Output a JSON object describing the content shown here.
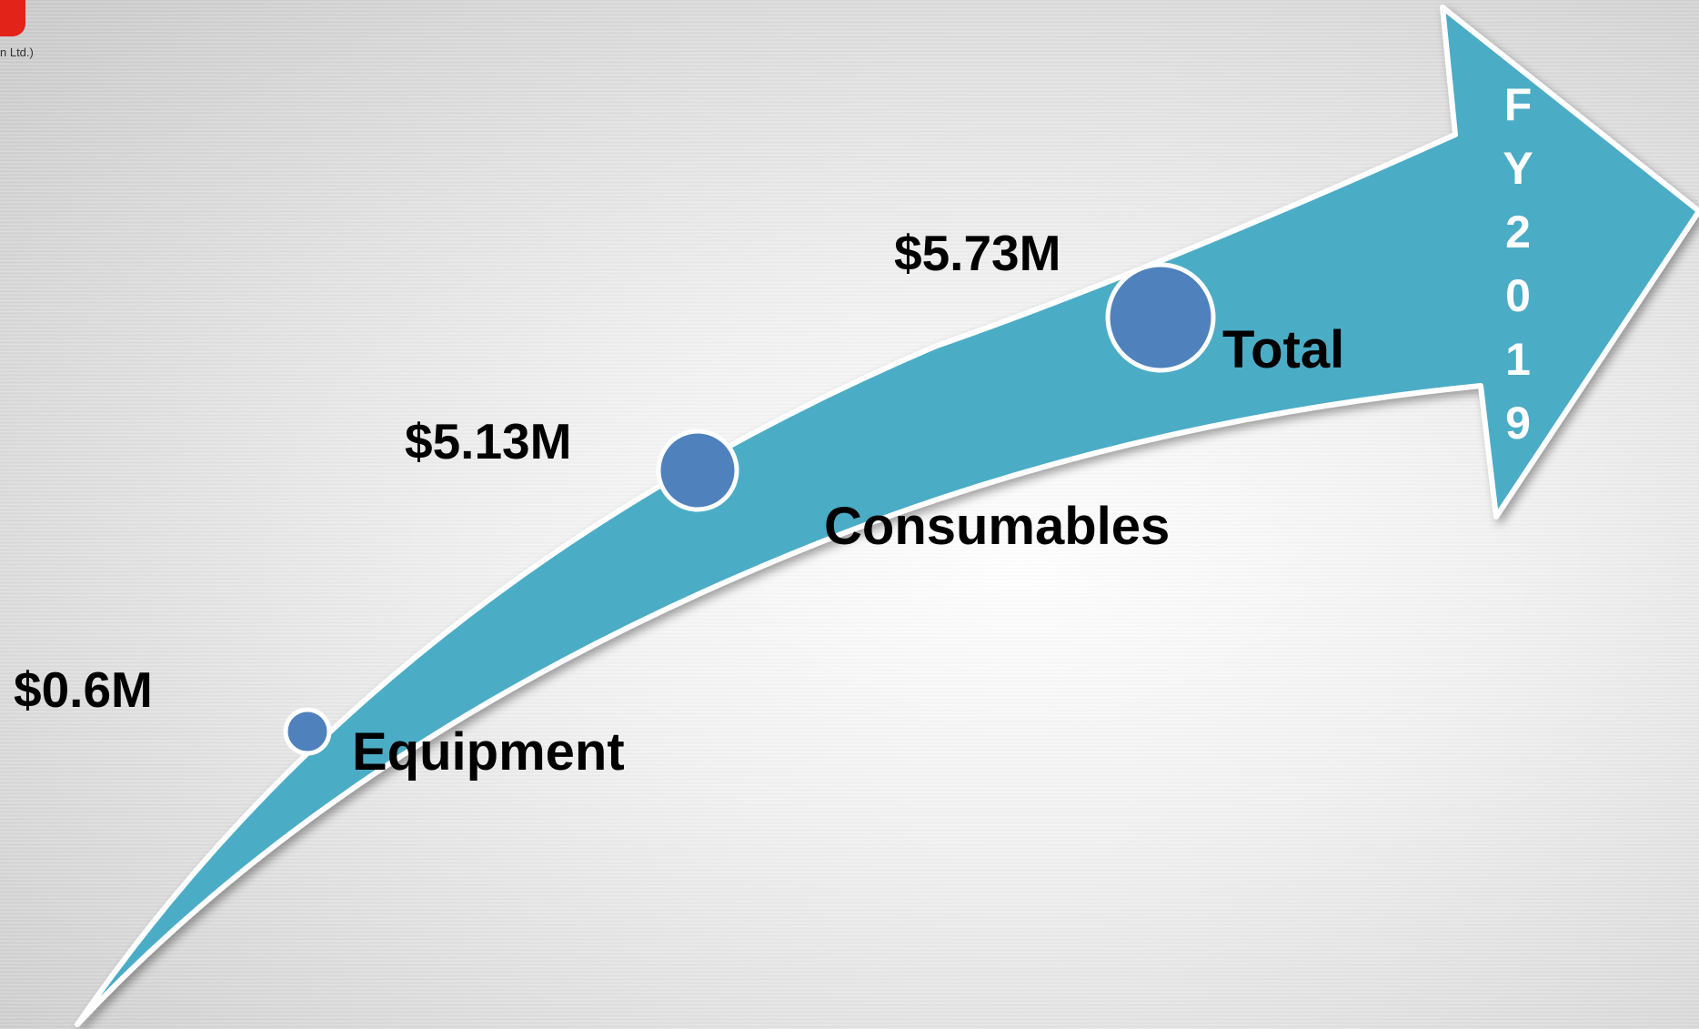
{
  "logo": {
    "tagline": "n Ltd.)"
  },
  "timeline": {
    "year_vertical": "FY2019",
    "items": [
      {
        "label": "Equipment",
        "value": "$0.6M"
      },
      {
        "label": "Consumables",
        "value": "$5.13M"
      },
      {
        "label": "Total",
        "value": "$5.73M"
      }
    ]
  },
  "colors": {
    "arrow_fill": "#4bacc6",
    "arrow_outline": "#ffffff",
    "dot_fill": "#4f81bd",
    "dot_outline": "#ffffff",
    "logo_red": "#e2231a"
  }
}
